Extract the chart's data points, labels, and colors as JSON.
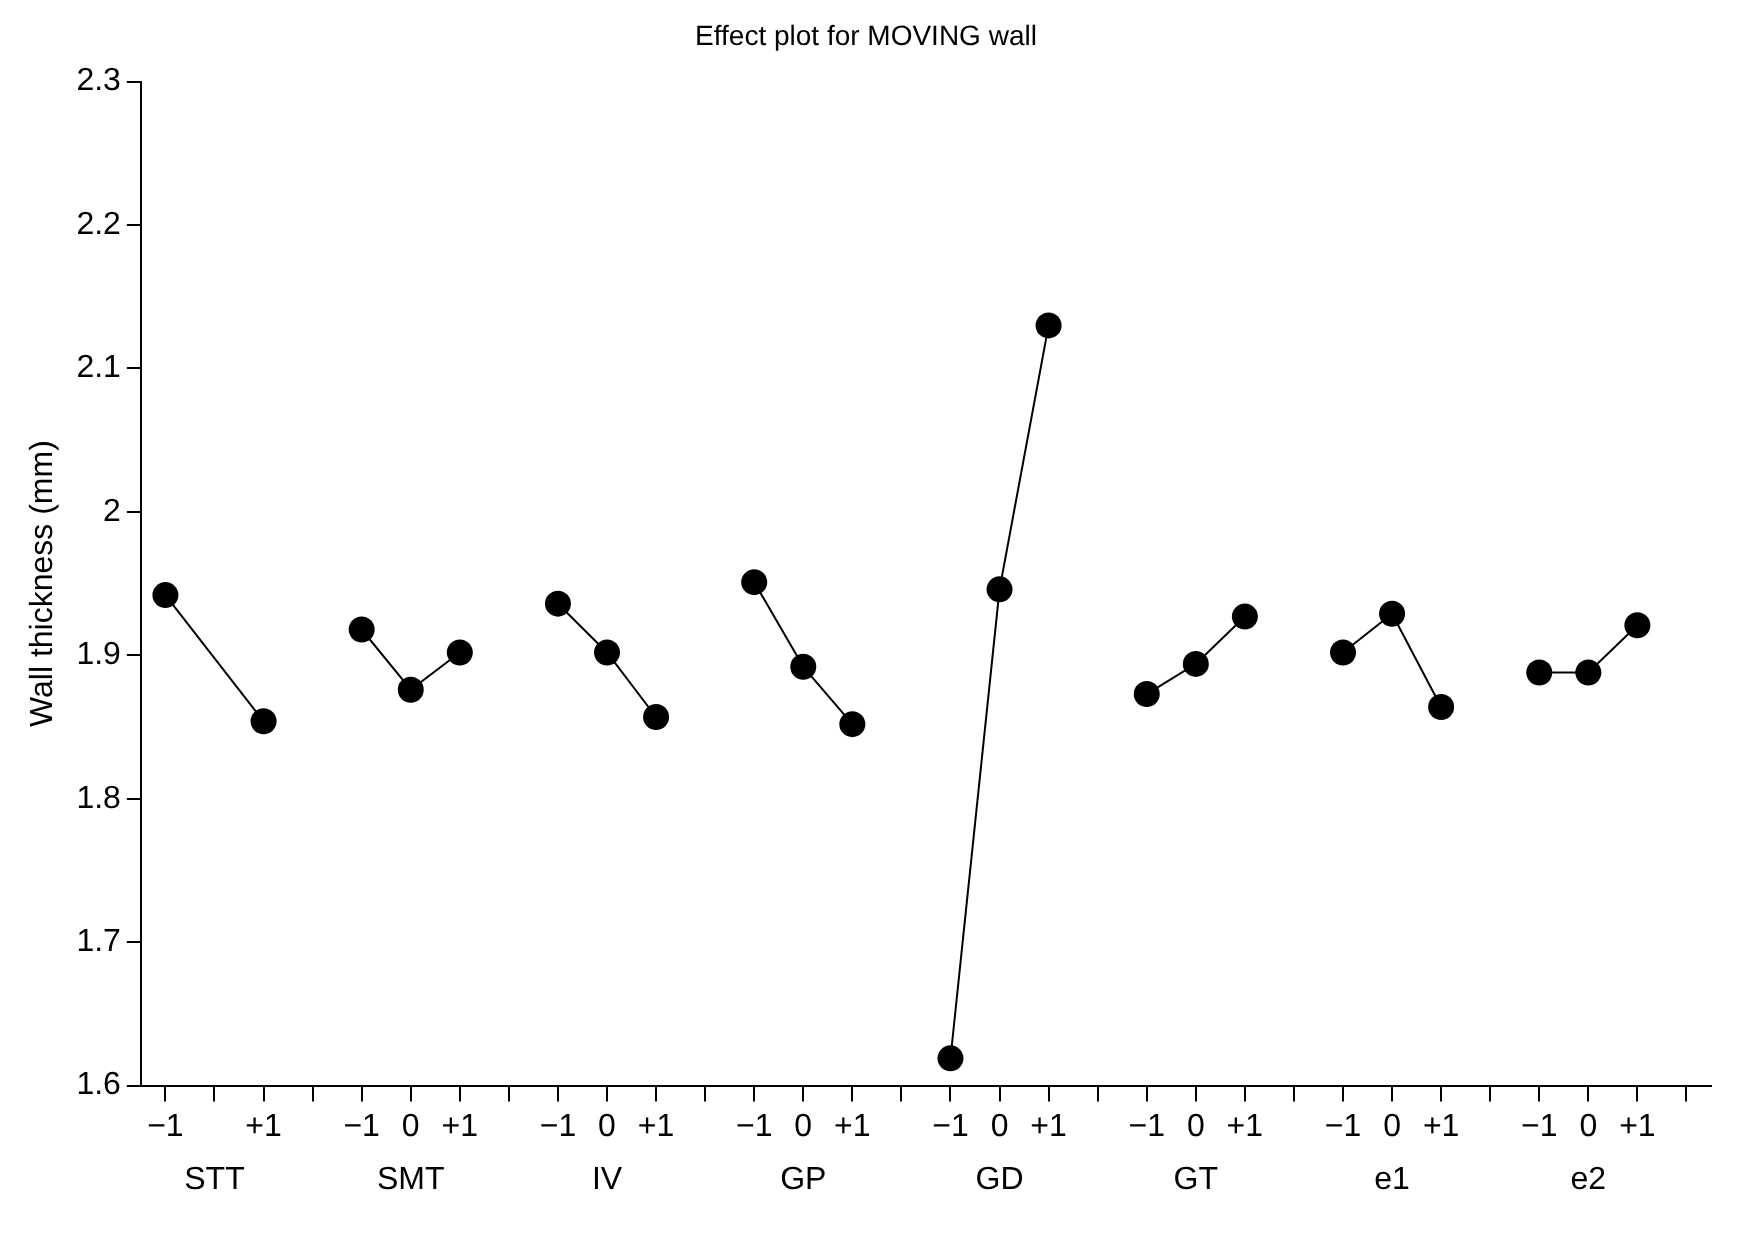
{
  "chart_data": {
    "type": "line",
    "title": "Effect plot for MOVING wall",
    "ylabel": "Wall thickness (mm)",
    "categories": [
      "−1",
      null,
      "+1",
      null,
      "−1",
      "0",
      "+1",
      null,
      "−1",
      "0",
      "+1",
      null,
      "−1",
      "0",
      "+1",
      null,
      "−1",
      "0",
      "+1",
      null,
      "−1",
      "0",
      "+1",
      null,
      "−1",
      "0",
      "+1",
      null,
      "−1",
      "0",
      "+1",
      null
    ],
    "ylim": [
      1.6,
      2.3
    ],
    "yticks": [
      1.6,
      1.7,
      1.8,
      1.9,
      2,
      2.1,
      2.2,
      2.3
    ],
    "annotations": [
      "STT",
      "SMT",
      "IV",
      "GP",
      "GD",
      "GT",
      "e1",
      "e2"
    ],
    "grid": false,
    "legend": false,
    "marker": "circle",
    "line_style": "solid",
    "series": [
      {
        "color": "#000000",
        "values": [
          1.942,
          null,
          1.854,
          null,
          null,
          null,
          null,
          null,
          null,
          null,
          null,
          null,
          null,
          null,
          null,
          null,
          null,
          null,
          null,
          null,
          null,
          null,
          null,
          null,
          null,
          null,
          null,
          null,
          null,
          null,
          null,
          null
        ]
      },
      {
        "color": "#000000",
        "values": [
          null,
          null,
          null,
          null,
          1.918,
          1.876,
          1.902,
          null,
          null,
          null,
          null,
          null,
          null,
          null,
          null,
          null,
          null,
          null,
          null,
          null,
          null,
          null,
          null,
          null,
          null,
          null,
          null,
          null,
          null,
          null,
          null,
          null
        ]
      },
      {
        "color": "#000000",
        "values": [
          null,
          null,
          null,
          null,
          null,
          null,
          null,
          null,
          1.936,
          1.902,
          1.857,
          null,
          null,
          null,
          null,
          null,
          null,
          null,
          null,
          null,
          null,
          null,
          null,
          null,
          null,
          null,
          null,
          null,
          null,
          null,
          null,
          null
        ]
      },
      {
        "color": "#000000",
        "values": [
          null,
          null,
          null,
          null,
          null,
          null,
          null,
          null,
          null,
          null,
          null,
          null,
          1.951,
          1.892,
          1.852,
          null,
          null,
          null,
          null,
          null,
          null,
          null,
          null,
          null,
          null,
          null,
          null,
          null,
          null,
          null,
          null,
          null
        ]
      },
      {
        "color": "#000000",
        "values": [
          null,
          null,
          null,
          null,
          null,
          null,
          null,
          null,
          null,
          null,
          null,
          null,
          null,
          null,
          null,
          null,
          1.619,
          1.946,
          2.13,
          null,
          null,
          null,
          null,
          null,
          null,
          null,
          null,
          null,
          null,
          null,
          null,
          null
        ]
      },
      {
        "color": "#000000",
        "values": [
          null,
          null,
          null,
          null,
          null,
          null,
          null,
          null,
          null,
          null,
          null,
          null,
          null,
          null,
          null,
          null,
          null,
          null,
          null,
          null,
          1.873,
          1.894,
          1.927,
          null,
          null,
          null,
          null,
          null,
          null,
          null,
          null,
          null
        ]
      },
      {
        "color": "#000000",
        "values": [
          null,
          null,
          null,
          null,
          null,
          null,
          null,
          null,
          null,
          null,
          null,
          null,
          null,
          null,
          null,
          null,
          null,
          null,
          null,
          null,
          null,
          null,
          null,
          null,
          1.902,
          1.929,
          1.864,
          null,
          null,
          null,
          null,
          null
        ]
      },
      {
        "color": "#000000",
        "values": [
          null,
          null,
          null,
          null,
          null,
          null,
          null,
          null,
          null,
          null,
          null,
          null,
          null,
          null,
          null,
          null,
          null,
          null,
          null,
          null,
          null,
          null,
          null,
          null,
          null,
          null,
          null,
          null,
          1.888,
          1.888,
          1.921,
          null
        ]
      }
    ]
  }
}
